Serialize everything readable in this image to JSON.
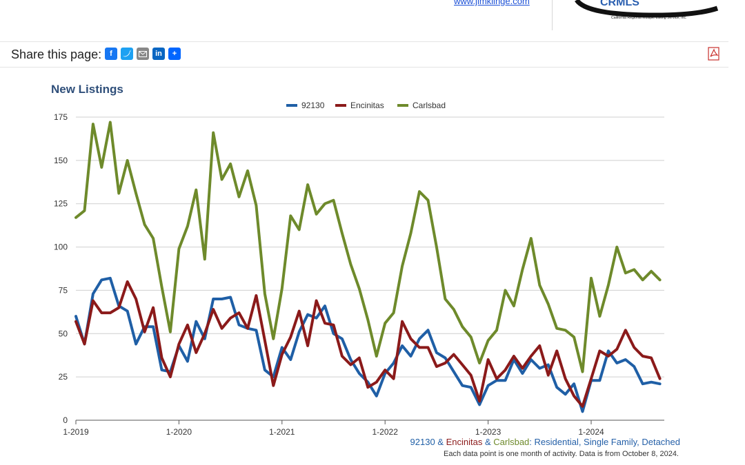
{
  "header": {
    "link_text": "www.jimklinge.com",
    "logo_text": "CRMLS",
    "logo_subtext": "California Regional Multiple Listing Service, Inc."
  },
  "share": {
    "label": "Share this page:",
    "icons": [
      "facebook-icon",
      "twitter-icon",
      "email-icon",
      "linkedin-icon",
      "share-plus-icon"
    ]
  },
  "chart_data": {
    "type": "line",
    "title": "New Listings",
    "xlabel": "",
    "ylabel": "",
    "ylim": [
      0,
      175
    ],
    "yticks": [
      0,
      25,
      50,
      75,
      100,
      125,
      150,
      175
    ],
    "x_tick_labels": [
      "1-2019",
      "1-2020",
      "1-2021",
      "1-2022",
      "1-2023",
      "1-2024"
    ],
    "legend_position": "top-center",
    "grid": true,
    "x_start": "2019-01",
    "series": [
      {
        "name": "92130",
        "color": "#1f5fa6",
        "values": [
          60,
          44,
          73,
          81,
          82,
          66,
          63,
          44,
          54,
          54,
          29,
          28,
          43,
          34,
          57,
          47,
          70,
          70,
          71,
          55,
          53,
          52,
          29,
          25,
          42,
          35,
          51,
          61,
          59,
          66,
          50,
          47,
          35,
          27,
          22,
          14,
          27,
          33,
          43,
          37,
          47,
          52,
          39,
          36,
          28,
          20,
          19,
          9,
          20,
          23,
          23,
          35,
          27,
          35,
          30,
          32,
          19,
          15,
          21,
          5,
          23,
          23,
          40,
          33,
          35,
          31,
          21,
          22,
          21
        ]
      },
      {
        "name": "Encinitas",
        "color": "#8b1a1a",
        "values": [
          57,
          44,
          69,
          62,
          62,
          65,
          80,
          70,
          51,
          65,
          36,
          25,
          44,
          55,
          39,
          50,
          64,
          53,
          59,
          62,
          53,
          72,
          46,
          20,
          38,
          48,
          63,
          43,
          69,
          56,
          55,
          37,
          32,
          36,
          19,
          22,
          29,
          24,
          57,
          47,
          42,
          42,
          31,
          33,
          38,
          32,
          26,
          11,
          35,
          24,
          29,
          37,
          30,
          37,
          43,
          26,
          40,
          24,
          14,
          8,
          24,
          40,
          37,
          41,
          52,
          42,
          37,
          36,
          24
        ]
      },
      {
        "name": "Carlsbad",
        "color": "#6e8a2b",
        "values": [
          117,
          121,
          171,
          146,
          172,
          131,
          150,
          131,
          113,
          105,
          77,
          51,
          99,
          112,
          133,
          93,
          166,
          139,
          148,
          129,
          144,
          124,
          73,
          47,
          76,
          118,
          110,
          136,
          119,
          125,
          127,
          108,
          90,
          76,
          58,
          37,
          56,
          62,
          89,
          108,
          132,
          127,
          100,
          70,
          64,
          54,
          48,
          33,
          46,
          52,
          75,
          66,
          87,
          105,
          78,
          67,
          53,
          52,
          48,
          28,
          82,
          60,
          78,
          100,
          85,
          87,
          81,
          86,
          81
        ]
      }
    ]
  },
  "footnote": {
    "series_1": "92130",
    "amp_1": " & ",
    "series_2": "Encinitas",
    "amp_2": " & ",
    "series_3": "Carlsbad",
    "description": ": Residential, Single Family, Detached",
    "data_note": "Each data point is one month of activity. Data is from October 8, 2024."
  },
  "colors": {
    "blue": "#1f5fa6",
    "red": "#8b1a1a",
    "green": "#6e8a2b",
    "title": "#2f4f7a"
  }
}
